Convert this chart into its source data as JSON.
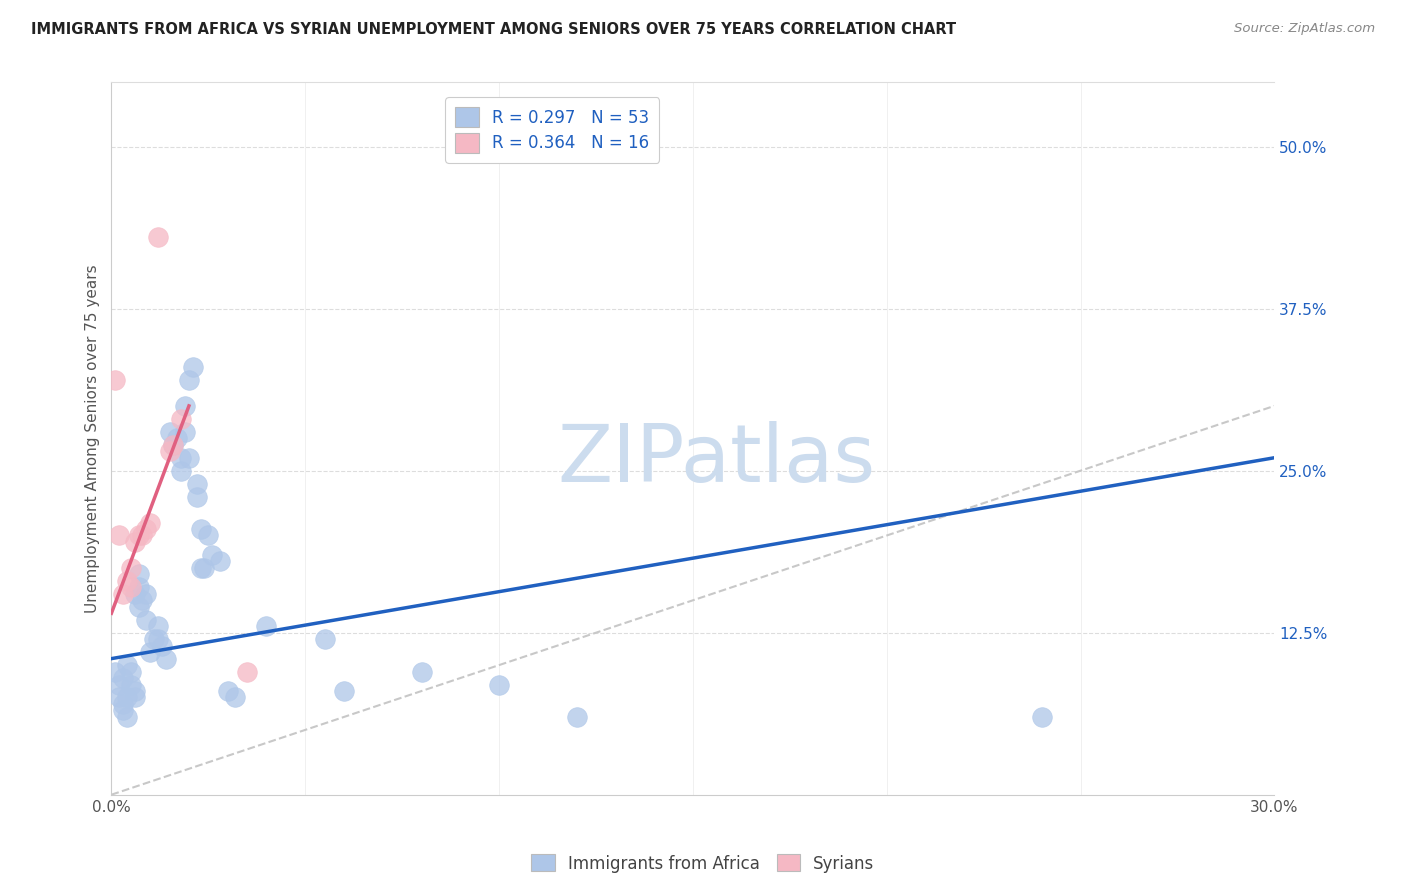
{
  "title": "IMMIGRANTS FROM AFRICA VS SYRIAN UNEMPLOYMENT AMONG SENIORS OVER 75 YEARS CORRELATION CHART",
  "source": "Source: ZipAtlas.com",
  "ylabel": "Unemployment Among Seniors over 75 years",
  "xlim": [
    0.0,
    0.3
  ],
  "ylim": [
    0.0,
    0.55
  ],
  "xticks": [
    0.0,
    0.05,
    0.1,
    0.15,
    0.2,
    0.25,
    0.3
  ],
  "xtick_labels": [
    "0.0%",
    "",
    "",
    "",
    "",
    "",
    "30.0%"
  ],
  "yticks_right": [
    0.125,
    0.25,
    0.375,
    0.5
  ],
  "ytick_labels_right": [
    "12.5%",
    "25.0%",
    "37.5%",
    "50.0%"
  ],
  "blue_color": "#aec6e8",
  "pink_color": "#f5b8c4",
  "blue_line_color": "#2060c0",
  "pink_line_color": "#e06080",
  "ref_line_color": "#c8c8c8",
  "watermark_color": "#ccdcee",
  "legend_text_color": "#2060c0",
  "blue_scatter": [
    [
      0.001,
      0.095
    ],
    [
      0.002,
      0.085
    ],
    [
      0.002,
      0.075
    ],
    [
      0.003,
      0.07
    ],
    [
      0.003,
      0.065
    ],
    [
      0.003,
      0.09
    ],
    [
      0.004,
      0.075
    ],
    [
      0.004,
      0.06
    ],
    [
      0.004,
      0.1
    ],
    [
      0.005,
      0.085
    ],
    [
      0.005,
      0.095
    ],
    [
      0.006,
      0.075
    ],
    [
      0.006,
      0.08
    ],
    [
      0.006,
      0.155
    ],
    [
      0.007,
      0.145
    ],
    [
      0.007,
      0.16
    ],
    [
      0.007,
      0.17
    ],
    [
      0.008,
      0.15
    ],
    [
      0.009,
      0.155
    ],
    [
      0.009,
      0.135
    ],
    [
      0.01,
      0.11
    ],
    [
      0.011,
      0.12
    ],
    [
      0.012,
      0.13
    ],
    [
      0.012,
      0.12
    ],
    [
      0.013,
      0.115
    ],
    [
      0.014,
      0.105
    ],
    [
      0.015,
      0.28
    ],
    [
      0.016,
      0.27
    ],
    [
      0.017,
      0.275
    ],
    [
      0.018,
      0.26
    ],
    [
      0.018,
      0.25
    ],
    [
      0.019,
      0.28
    ],
    [
      0.019,
      0.3
    ],
    [
      0.02,
      0.26
    ],
    [
      0.02,
      0.32
    ],
    [
      0.021,
      0.33
    ],
    [
      0.022,
      0.24
    ],
    [
      0.022,
      0.23
    ],
    [
      0.023,
      0.175
    ],
    [
      0.023,
      0.205
    ],
    [
      0.024,
      0.175
    ],
    [
      0.025,
      0.2
    ],
    [
      0.026,
      0.185
    ],
    [
      0.028,
      0.18
    ],
    [
      0.03,
      0.08
    ],
    [
      0.032,
      0.075
    ],
    [
      0.04,
      0.13
    ],
    [
      0.055,
      0.12
    ],
    [
      0.06,
      0.08
    ],
    [
      0.08,
      0.095
    ],
    [
      0.1,
      0.085
    ],
    [
      0.12,
      0.06
    ],
    [
      0.24,
      0.06
    ]
  ],
  "pink_scatter": [
    [
      0.001,
      0.32
    ],
    [
      0.002,
      0.2
    ],
    [
      0.003,
      0.155
    ],
    [
      0.004,
      0.165
    ],
    [
      0.005,
      0.16
    ],
    [
      0.005,
      0.175
    ],
    [
      0.006,
      0.195
    ],
    [
      0.007,
      0.2
    ],
    [
      0.008,
      0.2
    ],
    [
      0.009,
      0.205
    ],
    [
      0.01,
      0.21
    ],
    [
      0.012,
      0.43
    ],
    [
      0.015,
      0.265
    ],
    [
      0.016,
      0.27
    ],
    [
      0.018,
      0.29
    ],
    [
      0.035,
      0.095
    ]
  ],
  "blue_regline_x": [
    0.0,
    0.3
  ],
  "blue_regline_y": [
    0.105,
    0.26
  ],
  "pink_regline_x": [
    0.0,
    0.02
  ],
  "pink_regline_y": [
    0.14,
    0.3
  ],
  "ref_line_x": [
    0.0,
    0.55
  ],
  "ref_line_y": [
    0.0,
    0.55
  ]
}
